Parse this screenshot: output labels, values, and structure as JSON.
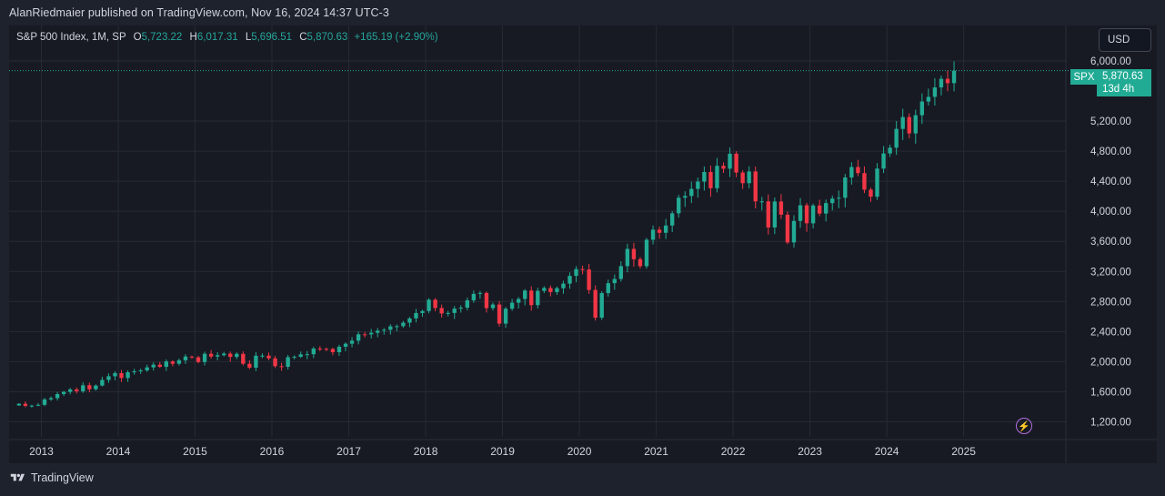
{
  "header": {
    "published": "AlanRiedmaier published on TradingView.com, Nov 16, 2024 14:37 UTC-3"
  },
  "legend": {
    "symbol": "S&P 500 Index, 1M, SP",
    "o_label": "O",
    "o_value": "5,723.22",
    "h_label": "H",
    "h_value": "6,017.31",
    "l_label": "L",
    "l_value": "5,696.51",
    "c_label": "C",
    "c_value": "5,870.63",
    "change": "+165.19 (+2.90%)"
  },
  "currency_button": "USD",
  "last_price": {
    "symbol": "SPX",
    "price": "5,870.63",
    "countdown": "13d 4h"
  },
  "footer": {
    "brand": "TradingView"
  },
  "colors": {
    "up": "#22ab94",
    "down": "#f23645",
    "background": "#171a23",
    "grid": "#262a35",
    "text": "#d1d4dc"
  },
  "chart_data": {
    "type": "candlestick",
    "interval": "1M",
    "y_ticks": [
      "1,200.00",
      "1,600.00",
      "2,000.00",
      "2,400.00",
      "2,800.00",
      "3,200.00",
      "3,600.00",
      "4,000.00",
      "4,400.00",
      "4,800.00",
      "5,200.00",
      "6,000.00"
    ],
    "y_tick_values": [
      1200,
      1600,
      2000,
      2400,
      2800,
      3200,
      3600,
      4000,
      4400,
      4800,
      5200,
      6000
    ],
    "x_ticks": [
      "2013",
      "2014",
      "2015",
      "2016",
      "2017",
      "2018",
      "2019",
      "2020",
      "2021",
      "2022",
      "2023",
      "2024",
      "2025"
    ],
    "x_tick_values": [
      2013,
      2014,
      2015,
      2016,
      2017,
      2018,
      2019,
      2020,
      2021,
      2022,
      2023,
      2024,
      2025
    ],
    "ylim": [
      1000,
      6060
    ],
    "xlim": [
      2012.58,
      2026.33
    ],
    "last_price_value": 5870.63,
    "monthly_close": {
      "start": "2012-09",
      "values": [
        1440,
        1412,
        1416,
        1426,
        1498,
        1515,
        1569,
        1598,
        1631,
        1606,
        1686,
        1633,
        1682,
        1757,
        1806,
        1848,
        1783,
        1859,
        1872,
        1884,
        1924,
        1960,
        1931,
        2003,
        1972,
        2018,
        2068,
        2058,
        1995,
        2105,
        2068,
        2086,
        2107,
        2063,
        2104,
        1972,
        1920,
        2079,
        2080,
        2044,
        1940,
        1932,
        2060,
        2065,
        2097,
        2099,
        2174,
        2170,
        2168,
        2126,
        2199,
        2239,
        2279,
        2364,
        2363,
        2384,
        2412,
        2424,
        2470,
        2472,
        2519,
        2575,
        2647,
        2674,
        2824,
        2714,
        2641,
        2648,
        2705,
        2718,
        2816,
        2902,
        2914,
        2712,
        2760,
        2506,
        2704,
        2784,
        2834,
        2946,
        2752,
        2942,
        2980,
        2926,
        2977,
        3038,
        3141,
        3231,
        3226,
        2954,
        2585,
        2912,
        3044,
        3100,
        3271,
        3500,
        3363,
        3270,
        3622,
        3756,
        3714,
        3811,
        3973,
        4181,
        4204,
        4298,
        4395,
        4523,
        4307,
        4605,
        4567,
        4766,
        4516,
        4374,
        4530,
        4132,
        4132,
        3785,
        4130,
        3955,
        3586,
        3872,
        4080,
        3840,
        4077,
        3970,
        4109,
        4169,
        4180,
        4450,
        4589,
        4508,
        4288,
        4194,
        4568,
        4770,
        4846,
        5096,
        5254,
        5036,
        5278,
        5460,
        5522,
        5648,
        5762,
        5705,
        5870
      ]
    }
  }
}
